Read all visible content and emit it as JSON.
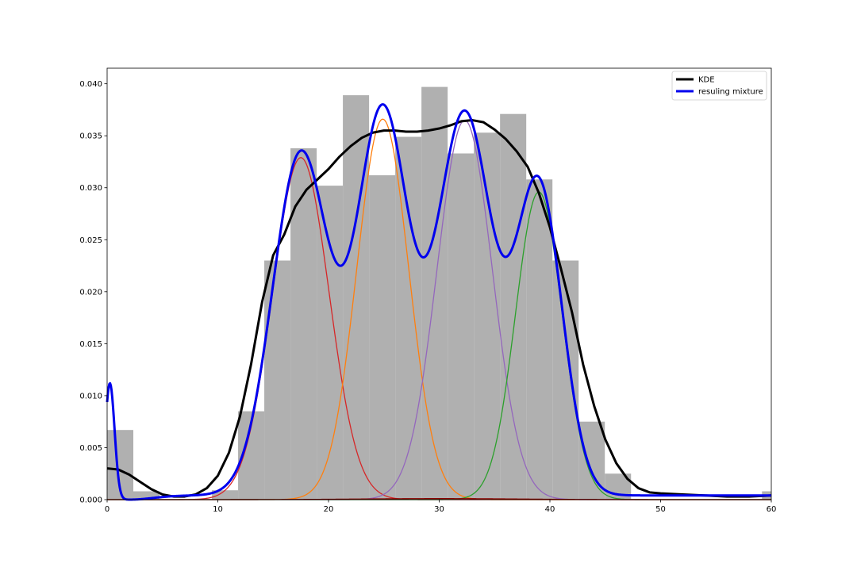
{
  "chart_data": {
    "type": "histogram",
    "title": "",
    "xlabel": "",
    "ylabel": "",
    "xlim": [
      0,
      60
    ],
    "ylim": [
      0,
      0.0415
    ],
    "grid": false,
    "legend_position": "top-right",
    "x_ticks": [
      "0",
      "10",
      "20",
      "30",
      "40",
      "50",
      "60"
    ],
    "y_ticks": [
      "0.000",
      "0.005",
      "0.010",
      "0.015",
      "0.020",
      "0.025",
      "0.030",
      "0.035",
      "0.040"
    ],
    "histogram": {
      "color": "#b0b0b0",
      "bin_edges": [
        0,
        2.366,
        4.733,
        7.099,
        9.466,
        11.832,
        14.198,
        16.565,
        18.931,
        21.297,
        23.664,
        26.03,
        28.397,
        30.763,
        33.129,
        35.496,
        37.862,
        40.228,
        42.595,
        44.961,
        47.328,
        49.694,
        52.06,
        54.427,
        56.793,
        59.159,
        61.526
      ],
      "density": [
        0.0067,
        0.0008,
        0,
        0,
        0.0009,
        0.0085,
        0.023,
        0.0338,
        0.0302,
        0.0389,
        0.0312,
        0.0349,
        0.0397,
        0.0333,
        0.0353,
        0.0371,
        0.0308,
        0.023,
        0.0075,
        0.0025,
        0,
        0,
        0,
        0,
        0,
        0.0008
      ]
    },
    "kde": {
      "name": "KDE",
      "color": "#000000",
      "x": [
        0,
        1,
        2,
        3,
        4,
        5,
        6,
        7,
        8,
        9,
        10,
        11,
        12,
        13,
        14,
        15,
        16,
        17,
        18,
        19,
        20,
        21,
        22,
        23,
        24,
        25,
        26,
        27,
        28,
        29,
        30,
        31,
        32,
        33,
        34,
        35,
        36,
        37,
        38,
        39,
        40,
        41,
        42,
        43,
        44,
        45,
        46,
        47,
        48,
        49,
        50,
        52,
        54,
        56,
        58,
        60
      ],
      "y": [
        0.003,
        0.0029,
        0.0024,
        0.0017,
        0.001,
        0.0005,
        0.0003,
        0.0003,
        0.0005,
        0.0011,
        0.0023,
        0.0045,
        0.008,
        0.013,
        0.019,
        0.0235,
        0.0255,
        0.0282,
        0.0298,
        0.0308,
        0.0318,
        0.033,
        0.034,
        0.0348,
        0.0353,
        0.0355,
        0.0355,
        0.0354,
        0.0354,
        0.0355,
        0.0357,
        0.036,
        0.0364,
        0.0365,
        0.0363,
        0.0356,
        0.0347,
        0.0335,
        0.032,
        0.0295,
        0.0262,
        0.0222,
        0.018,
        0.013,
        0.009,
        0.0058,
        0.0035,
        0.002,
        0.0011,
        0.0007,
        0.0006,
        0.0005,
        0.0004,
        0.0003,
        0.0003,
        0.0004
      ]
    },
    "components": [
      {
        "color": "#d62728",
        "mean": 17.5,
        "sd": 2.55,
        "peak": 0.0329
      },
      {
        "color": "#ff7f0e",
        "mean": 24.9,
        "sd": 2.35,
        "peak": 0.0366
      },
      {
        "color": "#9467bd",
        "mean": 32.3,
        "sd": 2.5,
        "peak": 0.0365
      },
      {
        "color": "#2ca02c",
        "mean": 39.0,
        "sd": 2.1,
        "peak": 0.0296
      },
      {
        "color": "#8b0000",
        "mean": 30.0,
        "sd": 7.0,
        "peak": 0.0001
      }
    ],
    "mixture": {
      "name": "resuling mixture",
      "color": "#0000ee",
      "spike": {
        "mean": 0.25,
        "sd": 0.42,
        "peak": 0.0112
      },
      "floor": 0.0004
    },
    "legend": [
      {
        "label": "KDE",
        "color": "#000000"
      },
      {
        "label": "resuling mixture",
        "color": "#0000ee"
      }
    ]
  }
}
